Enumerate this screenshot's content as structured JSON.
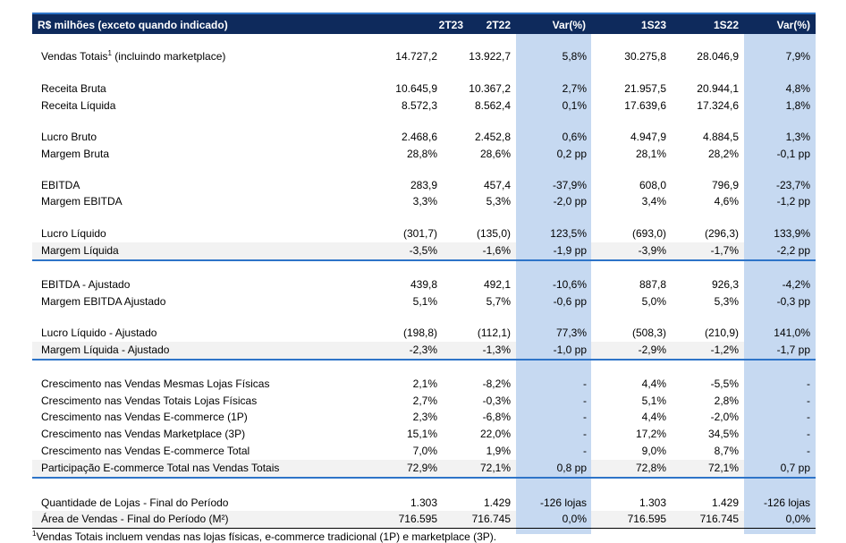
{
  "header": {
    "label": "R$ milhões (exceto quando indicado)",
    "columns": [
      "2T23",
      "2T22",
      "Var(%)",
      "1S23",
      "1S22",
      "Var(%)"
    ]
  },
  "rows": [
    {
      "label": "Vendas Totais",
      "label_sup": "1",
      "label_suffix": " (incluindo marketplace)",
      "values": [
        "14.727,2",
        "13.922,7",
        "5,8%",
        "30.275,8",
        "28.046,9",
        "7,9%"
      ]
    },
    {
      "label": "Receita Bruta",
      "values": [
        "10.645,9",
        "10.367,2",
        "2,7%",
        "21.957,5",
        "20.944,1",
        "4,8%"
      ]
    },
    {
      "label": "Receita Líquida",
      "values": [
        "8.572,3",
        "8.562,4",
        "0,1%",
        "17.639,6",
        "17.324,6",
        "1,8%"
      ]
    },
    {
      "label": "Lucro Bruto",
      "values": [
        "2.468,6",
        "2.452,8",
        "0,6%",
        "4.947,9",
        "4.884,5",
        "1,3%"
      ]
    },
    {
      "label": "Margem Bruta",
      "values": [
        "28,8%",
        "28,6%",
        "0,2 pp",
        "28,1%",
        "28,2%",
        "-0,1 pp"
      ]
    },
    {
      "label": "EBITDA",
      "values": [
        "283,9",
        "457,4",
        "-37,9%",
        "608,0",
        "796,9",
        "-23,7%"
      ]
    },
    {
      "label": "Margem EBITDA",
      "values": [
        "3,3%",
        "5,3%",
        "-2,0 pp",
        "3,4%",
        "4,6%",
        "-1,2 pp"
      ]
    },
    {
      "label": "Lucro Líquido",
      "values": [
        "(301,7)",
        "(135,0)",
        "123,5%",
        "(693,0)",
        "(296,3)",
        "133,9%"
      ]
    },
    {
      "label": "Margem Líquida",
      "values": [
        "-3,5%",
        "-1,6%",
        "-1,9 pp",
        "-3,9%",
        "-1,7%",
        "-2,2 pp"
      ]
    },
    {
      "label": "EBITDA - Ajustado",
      "values": [
        "439,8",
        "492,1",
        "-10,6%",
        "887,8",
        "926,3",
        "-4,2%"
      ]
    },
    {
      "label": "Margem EBITDA Ajustado",
      "values": [
        "5,1%",
        "5,7%",
        "-0,6 pp",
        "5,0%",
        "5,3%",
        "-0,3 pp"
      ]
    },
    {
      "label": "Lucro Líquido - Ajustado",
      "values": [
        "(198,8)",
        "(112,1)",
        "77,3%",
        "(508,3)",
        "(210,9)",
        "141,0%"
      ]
    },
    {
      "label": "Margem Líquida - Ajustado",
      "values": [
        "-2,3%",
        "-1,3%",
        "-1,0 pp",
        "-2,9%",
        "-1,2%",
        "-1,7 pp"
      ]
    },
    {
      "label": "Crescimento nas Vendas Mesmas Lojas Físicas",
      "values": [
        "2,1%",
        "-8,2%",
        "-",
        "4,4%",
        "-5,5%",
        "-"
      ]
    },
    {
      "label": "Crescimento nas Vendas Totais Lojas Físicas",
      "values": [
        "2,7%",
        "-0,3%",
        "-",
        "5,1%",
        "2,8%",
        "-"
      ]
    },
    {
      "label": "Crescimento nas Vendas E-commerce (1P)",
      "values": [
        "2,3%",
        "-6,8%",
        "-",
        "4,4%",
        "-2,0%",
        "-"
      ]
    },
    {
      "label": "Crescimento nas Vendas Marketplace (3P)",
      "values": [
        "15,1%",
        "22,0%",
        "-",
        "17,2%",
        "34,5%",
        "-"
      ]
    },
    {
      "label": "Crescimento nas Vendas E-commerce Total",
      "values": [
        "7,0%",
        "1,9%",
        "-",
        "9,0%",
        "8,7%",
        "-"
      ]
    },
    {
      "label": "Participação E-commerce Total nas Vendas Totais",
      "values": [
        "72,9%",
        "72,1%",
        "0,8 pp",
        "72,8%",
        "72,1%",
        "0,7 pp"
      ]
    },
    {
      "label": "Quantidade de Lojas - Final do Período",
      "values": [
        "1.303",
        "1.429",
        "-126 lojas",
        "1.303",
        "1.429",
        "-126 lojas"
      ]
    },
    {
      "label": "Área de Vendas - Final do Período (M²)",
      "values": [
        "716.595",
        "716.745",
        "0,0%",
        "716.595",
        "716.745",
        "0,0%"
      ]
    }
  ],
  "footnote": {
    "sup": "1",
    "text": "Vendas Totais incluem vendas nas lojas físicas, e-commerce tradicional (1P) e marketplace (3P)."
  }
}
